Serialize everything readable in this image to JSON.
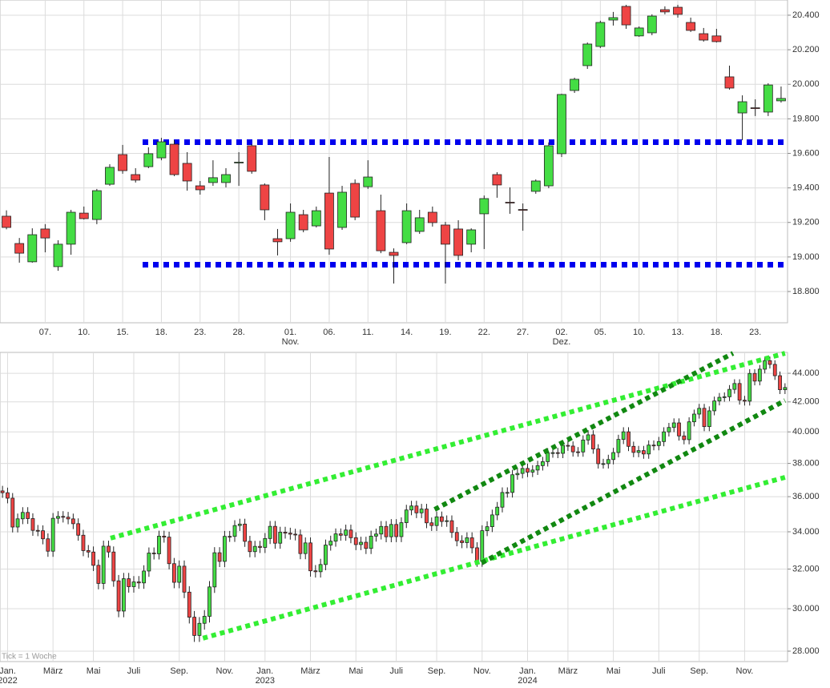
{
  "chart_data": [
    {
      "type": "candlestick",
      "categories": [
        null,
        null,
        null,
        "07.",
        null,
        null,
        "10.",
        null,
        null,
        "15.",
        null,
        null,
        "18.",
        null,
        null,
        "23.",
        null,
        null,
        "28.",
        null,
        null,
        null,
        "01.",
        null,
        null,
        "06.",
        null,
        null,
        "11.",
        null,
        null,
        "14.",
        null,
        null,
        "19.",
        null,
        null,
        "22.",
        null,
        null,
        "27.",
        null,
        null,
        "02.",
        null,
        null,
        "05.",
        null,
        null,
        "10.",
        null,
        null,
        "13.",
        null,
        null,
        "18.",
        null,
        null,
        "23.",
        null,
        null
      ],
      "group_labels": [
        {
          "index": 22,
          "label": "Nov."
        },
        {
          "index": 43,
          "label": "Dez."
        }
      ],
      "open": [
        19236,
        19078,
        18972,
        19162,
        18944,
        19074,
        19254,
        19217,
        19421,
        19593,
        19477,
        19523,
        19574,
        19653,
        19542,
        19412,
        19431,
        19431,
        19545,
        19644,
        19417,
        19106,
        19106,
        19245,
        19180,
        19370,
        19171,
        19426,
        19407,
        19268,
        19027,
        19083,
        19148,
        19259,
        19185,
        19162,
        19074,
        19250,
        19477,
        19317,
        19275,
        19380,
        19412,
        19598,
        19964,
        20108,
        20219,
        20372,
        20451,
        20280,
        20298,
        20432,
        20446,
        20358,
        20293,
        20280,
        20043,
        19834,
        19864,
        19839,
        19904
      ],
      "high": [
        19270,
        19110,
        19166,
        19190,
        19097,
        19273,
        19292,
        19394,
        19537,
        19649,
        19514,
        19635,
        19690,
        19676,
        19607,
        19440,
        19560,
        19514,
        19607,
        19653,
        19426,
        19162,
        19310,
        19273,
        19292,
        19579,
        19412,
        19449,
        19560,
        19361,
        19050,
        19310,
        19273,
        19292,
        19203,
        19213,
        19166,
        19356,
        19491,
        19403,
        19310,
        19449,
        19663,
        19945,
        20038,
        20242,
        20368,
        20419,
        20460,
        20335,
        20405,
        20451,
        20460,
        20386,
        20326,
        20321,
        20108,
        19936,
        19913,
        20006,
        19987
      ],
      "low": [
        19160,
        18967,
        18967,
        19027,
        18920,
        19013,
        19217,
        19190,
        19412,
        19482,
        19431,
        19514,
        19560,
        19468,
        19384,
        19361,
        19412,
        19403,
        19412,
        19482,
        19213,
        19009,
        19088,
        19143,
        19171,
        19013,
        19157,
        19213,
        19394,
        19022,
        18846,
        19074,
        19134,
        19176,
        18846,
        18981,
        19027,
        19046,
        19343,
        19250,
        19152,
        19366,
        19398,
        19579,
        19950,
        20089,
        20210,
        20340,
        20321,
        20275,
        20284,
        20405,
        20386,
        20303,
        20247,
        20242,
        19969,
        19676,
        19816,
        19816,
        19894
      ],
      "close": [
        19171,
        19022,
        19129,
        19110,
        19074,
        19259,
        19222,
        19384,
        19519,
        19500,
        19445,
        19598,
        19667,
        19477,
        19440,
        19389,
        19459,
        19477,
        19549,
        19496,
        19273,
        19088,
        19259,
        19157,
        19268,
        19046,
        19375,
        19231,
        19463,
        19036,
        19009,
        19268,
        19227,
        19199,
        19074,
        19009,
        19157,
        19338,
        19417,
        19313,
        19271,
        19440,
        19644,
        19941,
        20029,
        20233,
        20358,
        20386,
        20344,
        20326,
        20395,
        20419,
        20405,
        20312,
        20256,
        20247,
        19978,
        19899,
        19862,
        19996,
        19918
      ],
      "up_color": "#44dd44",
      "down_color": "#ee4444",
      "ylim": [
        18619,
        20488
      ],
      "yticks": [
        {
          "value": 18800,
          "label": "18.800"
        },
        {
          "value": 19000,
          "label": "19.000"
        },
        {
          "value": 19200,
          "label": "19.200"
        },
        {
          "value": 19400,
          "label": "19.400"
        },
        {
          "value": 19600,
          "label": "19.600"
        },
        {
          "value": 19800,
          "label": "19.800"
        },
        {
          "value": 20000,
          "label": "20.000"
        },
        {
          "value": 20200,
          "label": "20.200"
        },
        {
          "value": 20400,
          "label": "20.400"
        }
      ],
      "levels": [
        {
          "value": 19665,
          "color": "#0000ee"
        },
        {
          "value": 18955,
          "color": "#0000ee"
        }
      ],
      "grid": true,
      "log": false
    },
    {
      "type": "candlestick",
      "categories": [
        null,
        "Jan.",
        null,
        null,
        null,
        null,
        null,
        null,
        null,
        null,
        "März",
        null,
        null,
        null,
        null,
        null,
        null,
        null,
        "Mai",
        null,
        null,
        null,
        null,
        null,
        null,
        null,
        "Juli",
        null,
        null,
        null,
        null,
        null,
        null,
        null,
        null,
        "Sep.",
        null,
        null,
        null,
        null,
        null,
        null,
        null,
        null,
        "Nov.",
        null,
        null,
        null,
        null,
        null,
        null,
        null,
        "Jan.",
        null,
        null,
        null,
        null,
        null,
        null,
        null,
        null,
        "März",
        null,
        null,
        null,
        null,
        null,
        null,
        null,
        null,
        "Mai",
        null,
        null,
        null,
        null,
        null,
        null,
        null,
        "Juli",
        null,
        null,
        null,
        null,
        null,
        null,
        null,
        "Sep.",
        null,
        null,
        null,
        null,
        null,
        null,
        null,
        null,
        "Nov.",
        null,
        null,
        null,
        null,
        null,
        null,
        null,
        null,
        "Jan.",
        null,
        null,
        null,
        null,
        null,
        null,
        null,
        "März",
        null,
        null,
        null,
        null,
        null,
        null,
        null,
        null,
        "Mai",
        null,
        null,
        null,
        null,
        null,
        null,
        null,
        null,
        "Juli",
        null,
        null,
        null,
        null,
        null,
        null,
        null,
        "Sep.",
        null,
        null,
        null,
        null,
        null,
        null,
        null,
        null,
        "Nov.",
        null,
        null,
        null,
        null,
        null,
        null,
        null,
        null
      ],
      "group_labels": [
        {
          "index": 1,
          "label": "2022"
        },
        {
          "index": 52,
          "label": "2023"
        },
        {
          "index": 104,
          "label": "2024"
        }
      ],
      "open": [
        36338,
        36231,
        35912,
        34265,
        34725,
        35089,
        34738,
        34079,
        34058,
        33614,
        32944,
        34754,
        34861,
        34818,
        34721,
        34451,
        33811,
        32977,
        32899,
        32196,
        31262,
        33213,
        32900,
        31393,
        29888,
        31501,
        31097,
        31338,
        31288,
        31899,
        32845,
        32803,
        33761,
        33706,
        32283,
        31318,
        32151,
        30822,
        29590,
        28725,
        29297,
        29634,
        31083,
        32861,
        32403,
        33748,
        33746,
        34347,
        34430,
        33477,
        32920,
        33204,
        33147,
        33631,
        34303,
        33375,
        33978,
        33926,
        33869,
        33827,
        32817,
        33391,
        31910,
        31862,
        32238,
        33274,
        33485,
        33886,
        33809,
        34098,
        33674,
        33300,
        33427,
        33093,
        33762,
        33877,
        34299,
        33727,
        34408,
        33734,
        34509,
        35228,
        35459,
        35065,
        35281,
        34500,
        34347,
        34838,
        34577,
        34618,
        33964,
        33508,
        33407,
        33670,
        33127,
        32418,
        34061,
        34283,
        34947,
        35390,
        36246,
        36248,
        37306,
        37386,
        37690,
        37466,
        37593,
        37863,
        38109,
        38654,
        38671,
        38628,
        39131,
        39087,
        38723,
        38715,
        39475,
        39807,
        38904,
        37983,
        37986,
        38240,
        38676,
        39513,
        40004,
        39070,
        38686,
        38799,
        38589,
        39150,
        39119,
        39375,
        40001,
        40288,
        40589,
        39737,
        39498,
        40660,
        41175,
        41563,
        40345,
        41394,
        42063,
        42313,
        42352,
        42864,
        43275,
        42114,
        42052,
        43989,
        43445,
        44296,
        44911,
        44642,
        43828,
        42840
      ],
      "high": [
        36638,
        36531,
        36212,
        35025,
        35389,
        35389,
        35038,
        34379,
        34358,
        33914,
        35054,
        35161,
        35161,
        35118,
        35021,
        34751,
        34111,
        33277,
        33199,
        32496,
        33513,
        33513,
        33200,
        31693,
        31801,
        31801,
        31638,
        31638,
        32199,
        33145,
        33145,
        34061,
        34061,
        34006,
        32583,
        32451,
        32451,
        31122,
        29890,
        29597,
        29934,
        31383,
        33161,
        33161,
        34048,
        34048,
        34647,
        34730,
        34730,
        33777,
        33504,
        33504,
        33931,
        34603,
        34603,
        34278,
        34278,
        34226,
        34169,
        34127,
        33691,
        33691,
        32210,
        32538,
        33574,
        33785,
        34186,
        34186,
        34398,
        34398,
        33974,
        33727,
        33727,
        34062,
        34177,
        34599,
        34599,
        34708,
        34708,
        34809,
        35528,
        35759,
        35759,
        35581,
        35581,
        34800,
        35138,
        35138,
        34918,
        34918,
        34264,
        33808,
        33970,
        33970,
        33427,
        34361,
        34583,
        35247,
        35690,
        36546,
        36548,
        37606,
        37686,
        37990,
        37990,
        37893,
        38163,
        38409,
        38954,
        38971,
        38971,
        39431,
        39431,
        39387,
        39023,
        39775,
        40107,
        40107,
        39204,
        38286,
        38540,
        38976,
        39813,
        40304,
        40304,
        39370,
        39099,
        39099,
        39450,
        39450,
        39675,
        40301,
        40588,
        40889,
        40889,
        40037,
        40960,
        41475,
        41863,
        41863,
        41694,
        42363,
        42613,
        42652,
        43164,
        43575,
        43575,
        42414,
        44289,
        44289,
        44596,
        45211,
        45211,
        44942,
        44128,
        43292
      ],
      "low": [
        35931,
        35612,
        33965,
        33965,
        34425,
        34438,
        33779,
        33758,
        33314,
        32644,
        32644,
        34454,
        34518,
        34421,
        34151,
        33511,
        32677,
        32599,
        31896,
        30962,
        30962,
        32600,
        31093,
        29588,
        29588,
        30797,
        30797,
        30988,
        30988,
        31599,
        32503,
        32503,
        33406,
        31983,
        31018,
        31018,
        30522,
        29290,
        28425,
        28425,
        28997,
        29334,
        30783,
        32103,
        32103,
        33446,
        33446,
        34047,
        33177,
        32620,
        32620,
        32847,
        32847,
        33331,
        33075,
        33075,
        33626,
        33569,
        33527,
        32517,
        32517,
        31610,
        31562,
        31562,
        31938,
        32974,
        33185,
        33509,
        33509,
        33374,
        33000,
        33000,
        32793,
        32793,
        33462,
        33577,
        33427,
        33427,
        33434,
        33434,
        34209,
        34928,
        34765,
        34765,
        34200,
        34047,
        34047,
        34277,
        34277,
        33664,
        33208,
        33107,
        33107,
        32827,
        32118,
        32118,
        33761,
        33983,
        34647,
        35090,
        35946,
        35948,
        37006,
        37086,
        37166,
        37166,
        37293,
        37563,
        37809,
        38354,
        38328,
        38328,
        38787,
        38423,
        38415,
        38415,
        39175,
        38604,
        37683,
        37683,
        37686,
        37940,
        38376,
        39213,
        38770,
        38386,
        38386,
        38289,
        38289,
        38819,
        38819,
        39075,
        39701,
        39988,
        39437,
        39198,
        39198,
        40360,
        40875,
        40045,
        40045,
        41094,
        41763,
        42013,
        42052,
        42564,
        41814,
        41752,
        41752,
        43145,
        43145,
        43996,
        44342,
        43528,
        42540,
        42540
      ],
      "close": [
        36231,
        35912,
        34265,
        34725,
        35089,
        34738,
        34079,
        34058,
        33614,
        32944,
        34754,
        34861,
        34818,
        34721,
        34451,
        33811,
        32977,
        32899,
        32196,
        31262,
        33213,
        32900,
        31393,
        29888,
        31501,
        31097,
        31338,
        31288,
        31899,
        32845,
        32803,
        33761,
        33706,
        32283,
        31318,
        32151,
        30822,
        29590,
        28725,
        29297,
        29634,
        31083,
        32861,
        32403,
        33748,
        33746,
        34347,
        34430,
        33477,
        32920,
        33204,
        33147,
        33631,
        34303,
        33375,
        33978,
        33926,
        33869,
        33827,
        32817,
        33391,
        31910,
        31862,
        32238,
        33274,
        33485,
        33886,
        33809,
        34098,
        33674,
        33300,
        33427,
        33093,
        33762,
        33877,
        34299,
        33727,
        34408,
        33734,
        34509,
        35228,
        35459,
        35065,
        35281,
        34500,
        34347,
        34838,
        34577,
        34618,
        33964,
        33508,
        33407,
        33670,
        33127,
        32418,
        34061,
        34283,
        34947,
        35390,
        36246,
        36248,
        37306,
        37386,
        37690,
        37466,
        37593,
        37863,
        38109,
        38654,
        38671,
        38628,
        39131,
        39087,
        38723,
        38715,
        39475,
        39807,
        38904,
        37983,
        37986,
        38240,
        38676,
        39513,
        40004,
        39070,
        38686,
        38799,
        38589,
        39150,
        39119,
        39375,
        40001,
        40288,
        40589,
        39737,
        39498,
        40660,
        41175,
        41563,
        40345,
        41394,
        42063,
        42313,
        42352,
        42864,
        43275,
        42114,
        42052,
        43989,
        43445,
        44296,
        44911,
        44642,
        43828,
        42840,
        42992
      ],
      "up_color": "#44dd44",
      "down_color": "#ee4444",
      "ylim": [
        27530,
        45520
      ],
      "yticks": [
        {
          "value": 28000,
          "label": "28.000"
        },
        {
          "value": 30000,
          "label": "30.000"
        },
        {
          "value": 32000,
          "label": "32.000"
        },
        {
          "value": 34000,
          "label": "34.000"
        },
        {
          "value": 36000,
          "label": "36.000"
        },
        {
          "value": 38000,
          "label": "38.000"
        },
        {
          "value": 40000,
          "label": "40.000"
        },
        {
          "value": 42000,
          "label": "42.000"
        },
        {
          "value": 44000,
          "label": "44.000"
        }
      ],
      "trendlines": [
        {
          "points": [
            [
              21.4,
              33650
            ],
            [
              155,
              45456
            ]
          ],
          "color": "#33ee33"
        },
        {
          "points": [
            [
              39.7,
              28597
            ],
            [
              155,
              37150
            ]
          ],
          "color": "#33ee33"
        },
        {
          "points": [
            [
              85.6,
              35260
            ],
            [
              144.7,
              45456
            ]
          ],
          "color": "#118811"
        },
        {
          "points": [
            [
              94.9,
              32320
            ],
            [
              155,
              42094
            ]
          ],
          "color": "#118811"
        }
      ],
      "note": "Tick = 1 Woche",
      "grid": true,
      "log": true
    }
  ]
}
